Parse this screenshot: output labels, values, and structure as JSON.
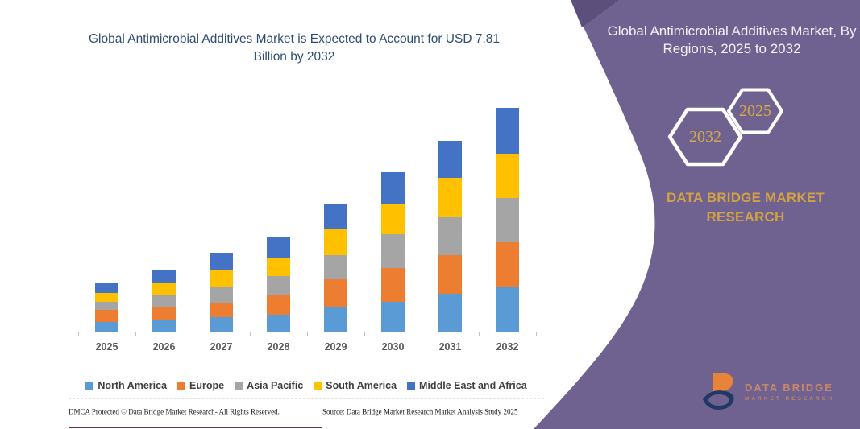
{
  "colors": {
    "panel_purple": "#6f6190",
    "panel_purple_dark": "#5c4f7c",
    "title_blue": "#2e4d76",
    "gold": "#d0a243",
    "axis_label_gray": "#595959",
    "legend_text": "#3f3f3f",
    "bottom_line_maroon": "#6d3434"
  },
  "chart_data": {
    "type": "bar",
    "stacked": true,
    "title": "Global Antimicrobial Additives Market is Expected to Account for USD 7.81 Billion by 2032",
    "unit": "USD Billion",
    "categories": [
      "2025",
      "2026",
      "2027",
      "2028",
      "2029",
      "2030",
      "2031",
      "2032"
    ],
    "series": [
      {
        "name": "North America",
        "color": "#5B9BD5",
        "values": [
          0.35,
          0.39,
          0.5,
          0.58,
          0.86,
          1.05,
          1.33,
          1.54
        ]
      },
      {
        "name": "Europe",
        "color": "#ED7D31",
        "values": [
          0.42,
          0.48,
          0.51,
          0.68,
          0.98,
          1.17,
          1.33,
          1.59
        ]
      },
      {
        "name": "Asia Pacific",
        "color": "#A5A5A5",
        "values": [
          0.27,
          0.42,
          0.56,
          0.67,
          0.82,
          1.17,
          1.34,
          1.53
        ]
      },
      {
        "name": "South America",
        "color": "#FFC000",
        "values": [
          0.3,
          0.42,
          0.56,
          0.66,
          0.93,
          1.05,
          1.36,
          1.56
        ]
      },
      {
        "name": "Middle East and Africa",
        "color": "#4472C4",
        "values": [
          0.36,
          0.45,
          0.62,
          0.71,
          0.84,
          1.13,
          1.31,
          1.59
        ]
      }
    ],
    "totals": [
      1.7,
      2.16,
      2.75,
      3.3,
      4.43,
      5.57,
      6.67,
      7.81
    ],
    "legend_position": "bottom",
    "grid": false,
    "xlabel": "",
    "ylabel": ""
  },
  "right_panel": {
    "heading": "Global Antimicrobial Additives Market, By Regions, 2025 to 2032",
    "hexagon_back_label": "2032",
    "hexagon_front_label": "2025",
    "brand": "DATA BRIDGE MARKET RESEARCH",
    "logo": {
      "line1": "DATA BRIDGE",
      "line2": "MARKET RESEARCH"
    }
  },
  "footer": {
    "dmca": "DMCA Protected © Data Bridge Market Research-  All Rights Reserved.",
    "source": "Source: Data Bridge Market Research  Market Analysis Study 2025"
  }
}
